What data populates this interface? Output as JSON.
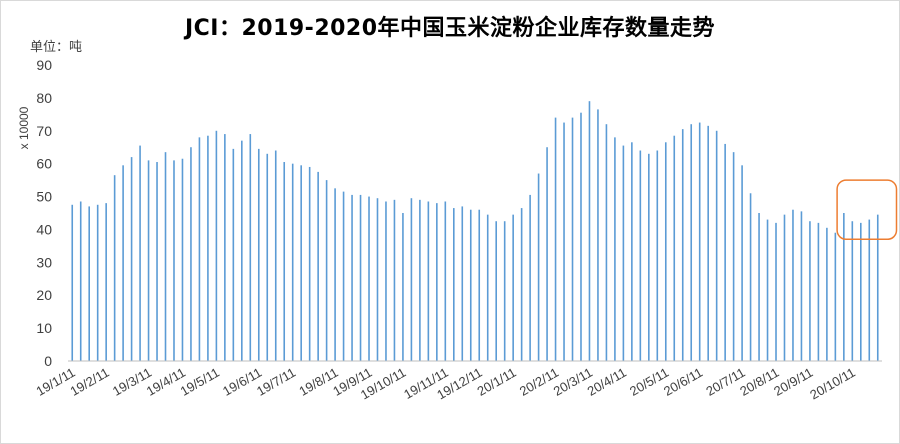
{
  "chart_data": {
    "type": "bar",
    "title": "JCI：2019-2020年中国玉米淀粉企业库存数量走势",
    "unit_label": "单位：吨",
    "ylabel": "x 10000",
    "ylim": [
      0,
      90
    ],
    "yticks": [
      0,
      10,
      20,
      30,
      40,
      50,
      60,
      70,
      80,
      90
    ],
    "xticks": [
      "19/1/11",
      "19/2/11",
      "19/3/11",
      "19/4/11",
      "19/5/11",
      "19/6/11",
      "19/7/11",
      "19/8/11",
      "19/9/11",
      "19/10/11",
      "19/11/11",
      "19/12/11",
      "20/1/11",
      "20/2/11",
      "20/3/11",
      "20/4/11",
      "20/5/11",
      "20/6/11",
      "20/7/11",
      "20/8/11",
      "20/9/11",
      "20/10/11"
    ],
    "grid": false,
    "bar_color": "#5b9bd5",
    "highlight_color": "#ed7d31",
    "values": [
      47.5,
      48.5,
      47,
      47.5,
      48,
      56.5,
      59.5,
      62,
      65.5,
      61,
      60.5,
      63.5,
      61,
      61.5,
      65,
      68,
      68.5,
      70,
      69,
      64.5,
      67,
      69,
      64.5,
      63,
      64,
      60.5,
      60,
      59.5,
      59,
      57.5,
      55,
      52.5,
      51.5,
      50.5,
      50.5,
      50,
      49.5,
      48.5,
      49,
      45,
      49.5,
      49,
      48.5,
      48,
      48.5,
      46.5,
      47,
      46,
      46,
      44.5,
      42.5,
      42.5,
      44.5,
      46.5,
      50.5,
      57,
      65,
      74,
      72.5,
      74,
      75.5,
      79,
      76.5,
      72,
      68,
      65.5,
      66.5,
      64,
      63,
      64,
      66.5,
      68.5,
      70.5,
      72,
      72.5,
      71.5,
      70,
      66,
      63.5,
      59.5,
      51,
      45,
      43,
      42,
      44.5,
      46,
      45.5,
      42.5,
      42,
      40.5,
      39,
      45,
      42.5,
      42,
      43,
      44.5
    ],
    "highlight": {
      "from_index": 91,
      "to_index": 95
    }
  }
}
